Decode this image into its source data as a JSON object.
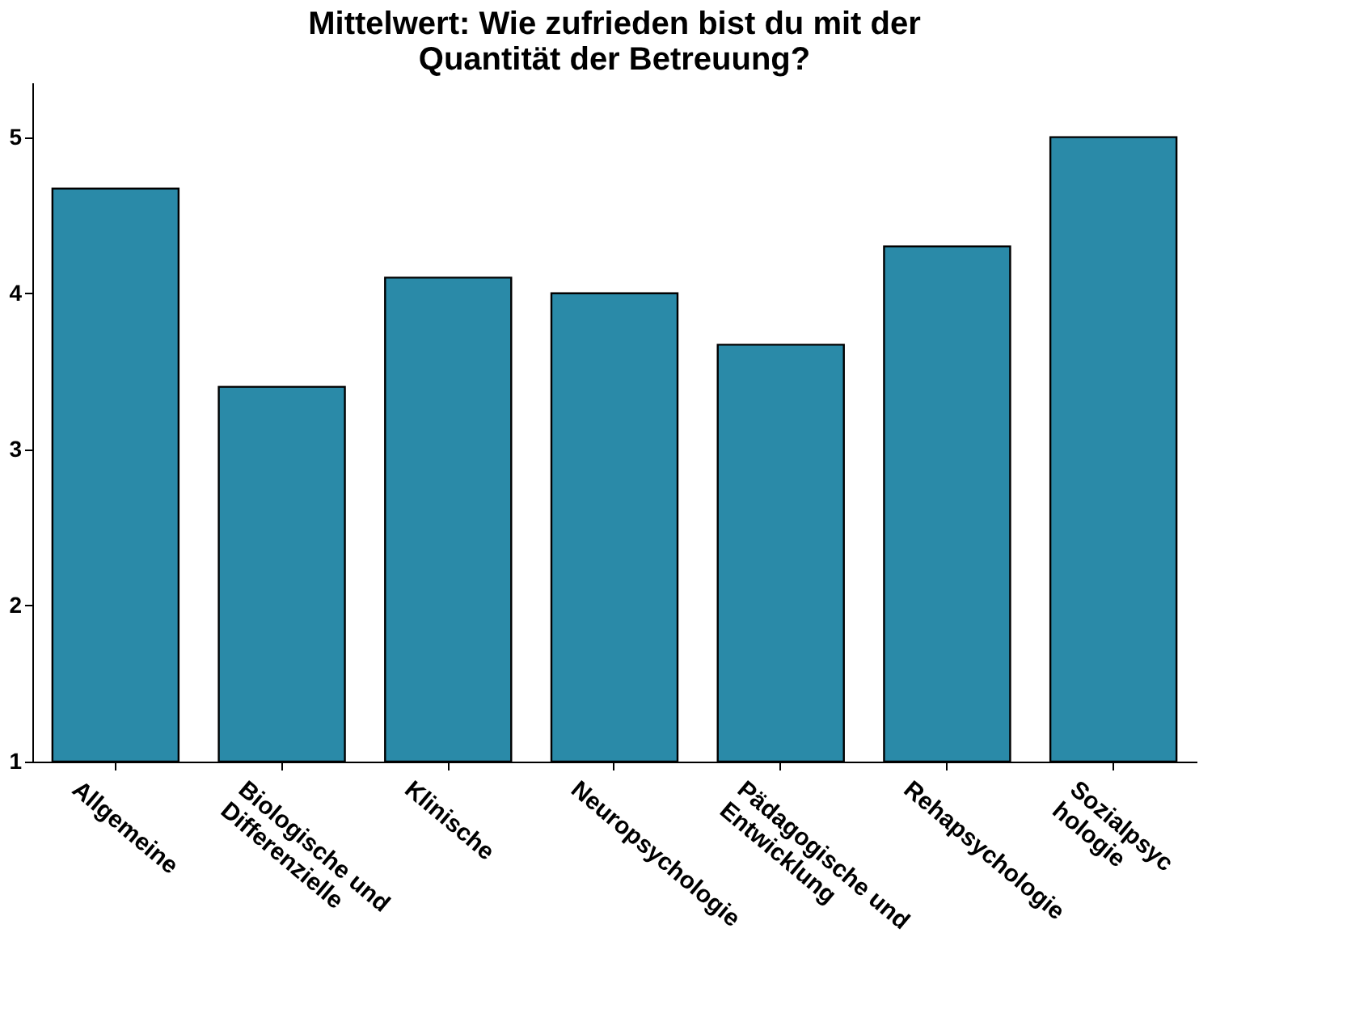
{
  "chart_data": {
    "type": "bar",
    "title": [
      "Mittelwert: Wie zufrieden bist du mit der",
      "Quantität der Betreuung?"
    ],
    "categories": [
      "Allgemeine",
      "Biologische und\nDifferenzielle",
      "Klinische",
      "Neuropsychologie",
      "Pädagogische und\nEntwicklung",
      "Rehapsychologie",
      "Sozialpsyc\nhologie"
    ],
    "values": [
      4.67,
      3.4,
      4.1,
      4.0,
      3.67,
      4.3,
      5.0
    ],
    "color": "#2a8aa8",
    "ylim": [
      1,
      5.35
    ],
    "yticks": [
      1,
      2,
      3,
      4,
      5
    ],
    "grid": false
  }
}
